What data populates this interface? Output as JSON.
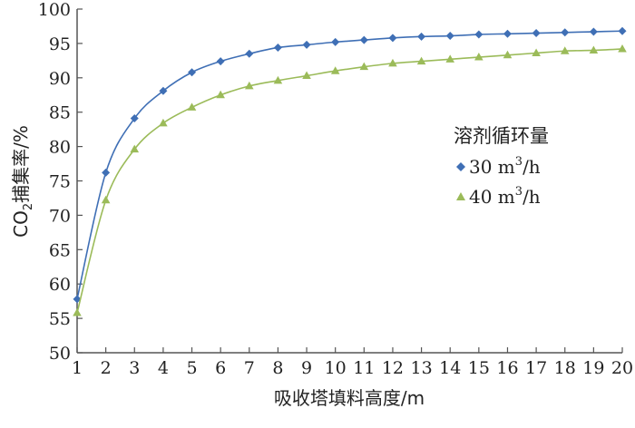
{
  "chart_data": {
    "type": "line",
    "x": [
      1,
      2,
      3,
      4,
      5,
      6,
      7,
      8,
      9,
      10,
      11,
      12,
      13,
      14,
      15,
      16,
      17,
      18,
      19,
      20
    ],
    "xlabel": "吸收塔填料高度/m",
    "ylabel_main": "CO",
    "ylabel_sub": "2",
    "ylabel_rest": "捕集率/%",
    "ylim": [
      50,
      100
    ],
    "yticks": [
      50,
      55,
      60,
      65,
      70,
      75,
      80,
      85,
      90,
      95,
      100
    ],
    "xlim": [
      1,
      20
    ],
    "grid": false,
    "legend": {
      "title": "溶剂循环量",
      "placement": "right-middle"
    },
    "series": [
      {
        "label_main": "30 m",
        "label_sup": "3",
        "label_rest": "/h",
        "color": "#3f6fb5",
        "marker": "diamond",
        "values": [
          57.8,
          76.2,
          84.1,
          88.1,
          90.8,
          92.4,
          93.5,
          94.4,
          94.8,
          95.2,
          95.5,
          95.8,
          96.0,
          96.1,
          96.3,
          96.4,
          96.5,
          96.6,
          96.7,
          96.8
        ]
      },
      {
        "label_main": "40 m",
        "label_sup": "3",
        "label_rest": "/h",
        "color": "#9bbb59",
        "marker": "triangle",
        "values": [
          55.8,
          72.2,
          79.6,
          83.4,
          85.7,
          87.5,
          88.8,
          89.6,
          90.3,
          91.0,
          91.6,
          92.1,
          92.4,
          92.7,
          93.0,
          93.3,
          93.6,
          93.9,
          94.0,
          94.2
        ]
      }
    ]
  }
}
